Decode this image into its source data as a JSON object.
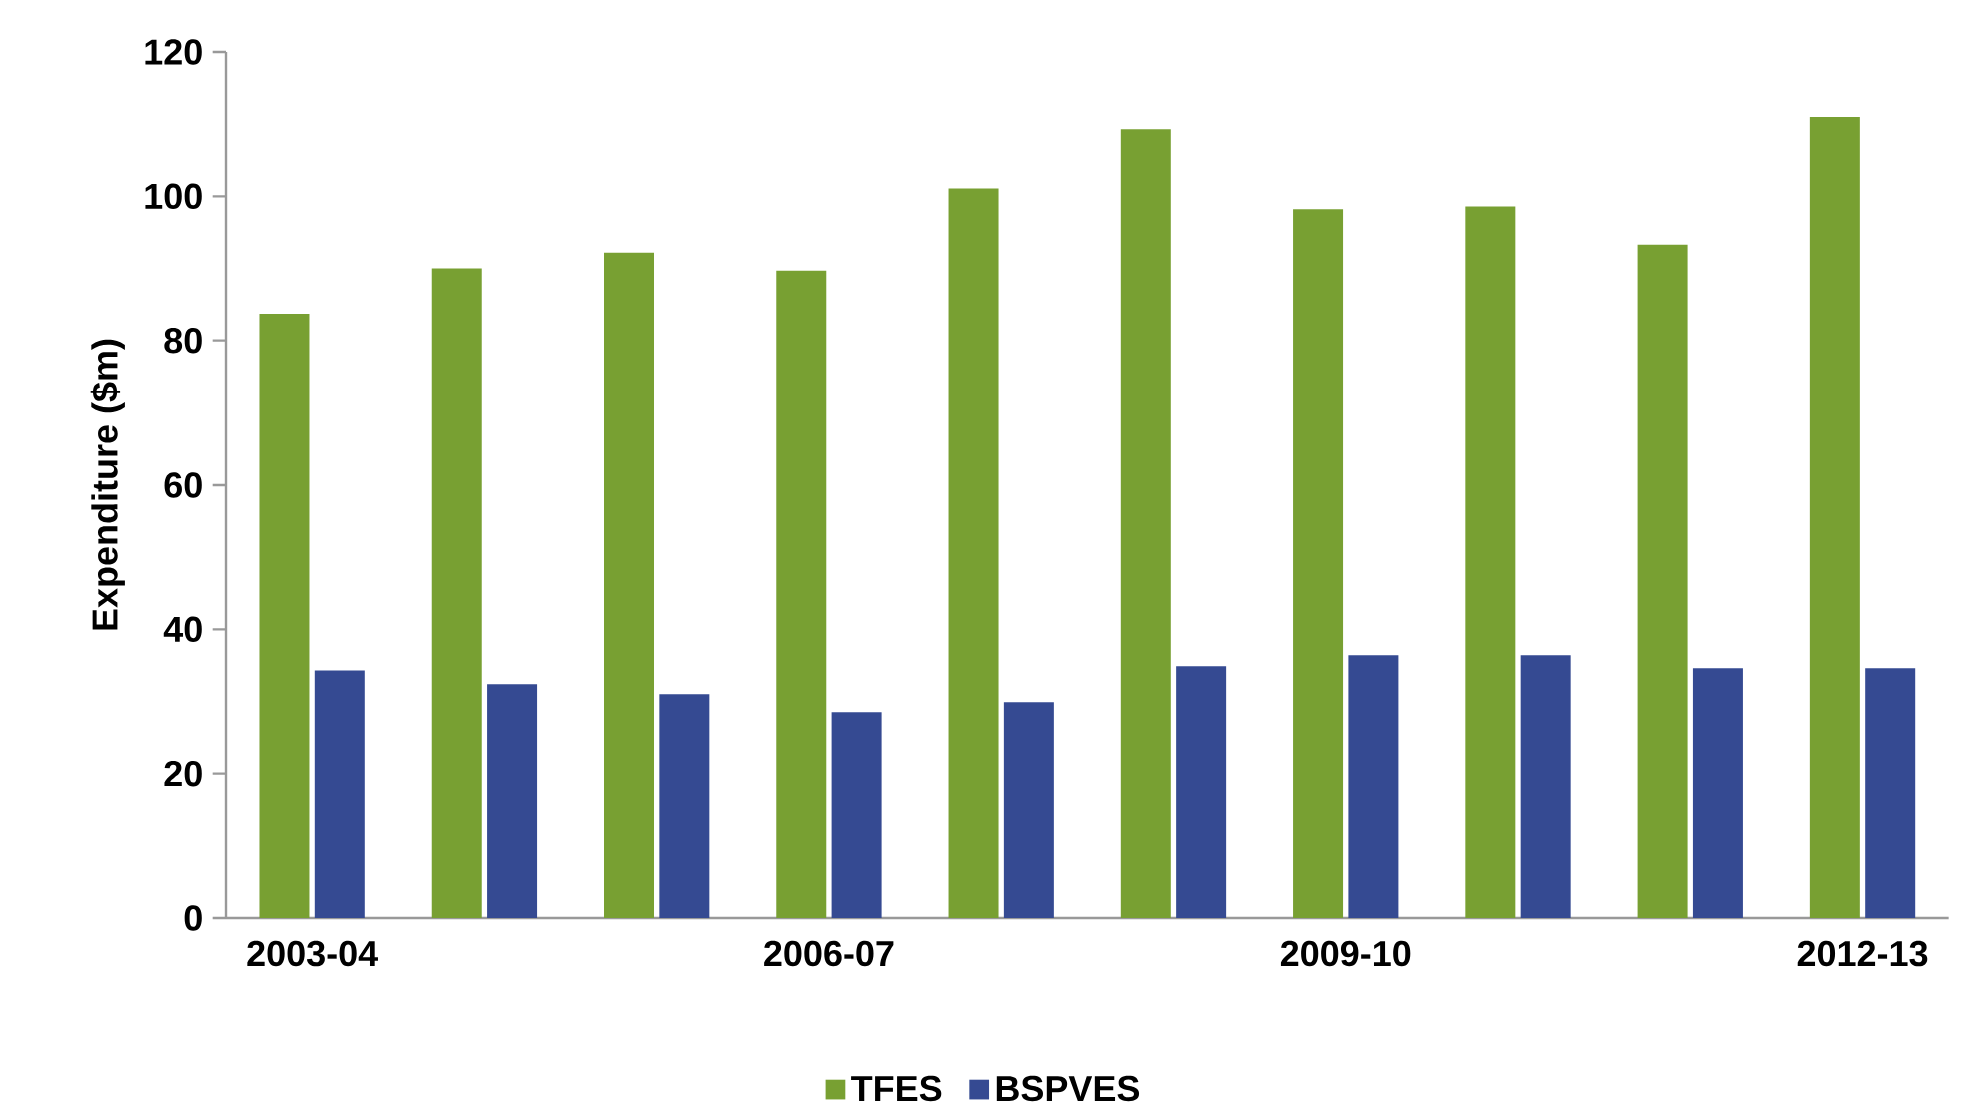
{
  "chart_data": {
    "type": "bar",
    "ylabel": "Expenditure ($m)",
    "categories": [
      "2003-04",
      null,
      null,
      "2006-07",
      null,
      null,
      "2009-10",
      null,
      null,
      "2012-13"
    ],
    "series": [
      {
        "name": "TFES",
        "color": "#78a032",
        "values": [
          83.7,
          90.0,
          92.2,
          89.7,
          101.1,
          109.3,
          98.2,
          98.6,
          93.3,
          111.0
        ]
      },
      {
        "name": "BSPVES",
        "color": "#354a92",
        "values": [
          34.3,
          32.4,
          31.0,
          28.5,
          29.9,
          34.9,
          36.4,
          36.4,
          34.6,
          34.6
        ]
      }
    ],
    "ylim": [
      0,
      120
    ],
    "yticks": [
      0,
      20,
      40,
      60,
      80,
      100,
      120
    ],
    "grid": false,
    "legend": "bottom"
  }
}
